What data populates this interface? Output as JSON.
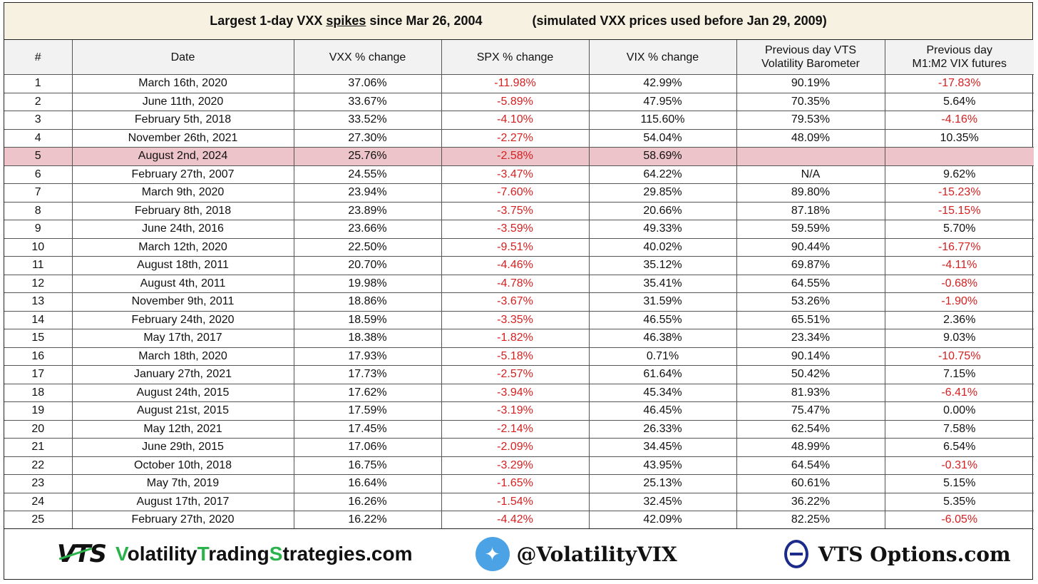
{
  "title": {
    "left_pre": "Largest 1-day VXX ",
    "left_underlined": "spikes",
    "left_post": " since Mar 26, 2004",
    "right": "(simulated VXX prices used before Jan 29, 2009)"
  },
  "headers": {
    "num": "#",
    "date": "Date",
    "vxx": "VXX % change",
    "spx": "SPX % change",
    "vix": "VIX % change",
    "vtsbaro_line1": "Previous day VTS",
    "vtsbaro_line2": "Volatility Barometer",
    "m1m2_line1": "Previous day",
    "m1m2_line2": "M1:M2 VIX futures"
  },
  "rows": [
    {
      "n": "1",
      "date": "March 16th, 2020",
      "vxx": "37.06%",
      "spx": "-11.98%",
      "vix": "42.99%",
      "baro": "90.19%",
      "m1m2": "-17.83%"
    },
    {
      "n": "2",
      "date": "June 11th, 2020",
      "vxx": "33.67%",
      "spx": "-5.89%",
      "vix": "47.95%",
      "baro": "70.35%",
      "m1m2": "5.64%"
    },
    {
      "n": "3",
      "date": "February 5th, 2018",
      "vxx": "33.52%",
      "spx": "-4.10%",
      "vix": "115.60%",
      "baro": "79.53%",
      "m1m2": "-4.16%"
    },
    {
      "n": "4",
      "date": "November 26th, 2021",
      "vxx": "27.30%",
      "spx": "-2.27%",
      "vix": "54.04%",
      "baro": "48.09%",
      "m1m2": "10.35%"
    },
    {
      "n": "5",
      "date": "August 2nd, 2024",
      "vxx": "25.76%",
      "spx": "-2.58%",
      "vix": "58.69%",
      "baro": "",
      "m1m2": ""
    },
    {
      "n": "6",
      "date": "February 27th, 2007",
      "vxx": "24.55%",
      "spx": "-3.47%",
      "vix": "64.22%",
      "baro": "N/A",
      "m1m2": "9.62%"
    },
    {
      "n": "7",
      "date": "March 9th, 2020",
      "vxx": "23.94%",
      "spx": "-7.60%",
      "vix": "29.85%",
      "baro": "89.80%",
      "m1m2": "-15.23%"
    },
    {
      "n": "8",
      "date": "February 8th, 2018",
      "vxx": "23.89%",
      "spx": "-3.75%",
      "vix": "20.66%",
      "baro": "87.18%",
      "m1m2": "-15.15%"
    },
    {
      "n": "9",
      "date": "June 24th, 2016",
      "vxx": "23.66%",
      "spx": "-3.59%",
      "vix": "49.33%",
      "baro": "59.59%",
      "m1m2": "5.70%"
    },
    {
      "n": "10",
      "date": "March 12th, 2020",
      "vxx": "22.50%",
      "spx": "-9.51%",
      "vix": "40.02%",
      "baro": "90.44%",
      "m1m2": "-16.77%"
    },
    {
      "n": "11",
      "date": "August 18th, 2011",
      "vxx": "20.70%",
      "spx": "-4.46%",
      "vix": "35.12%",
      "baro": "69.87%",
      "m1m2": "-4.11%"
    },
    {
      "n": "12",
      "date": "August 4th, 2011",
      "vxx": "19.98%",
      "spx": "-4.78%",
      "vix": "35.41%",
      "baro": "64.55%",
      "m1m2": "-0.68%"
    },
    {
      "n": "13",
      "date": "November 9th, 2011",
      "vxx": "18.86%",
      "spx": "-3.67%",
      "vix": "31.59%",
      "baro": "53.26%",
      "m1m2": "-1.90%"
    },
    {
      "n": "14",
      "date": "February 24th, 2020",
      "vxx": "18.59%",
      "spx": "-3.35%",
      "vix": "46.55%",
      "baro": "65.51%",
      "m1m2": "2.36%"
    },
    {
      "n": "15",
      "date": "May 17th, 2017",
      "vxx": "18.38%",
      "spx": "-1.82%",
      "vix": "46.38%",
      "baro": "23.34%",
      "m1m2": "9.03%"
    },
    {
      "n": "16",
      "date": "March 18th, 2020",
      "vxx": "17.93%",
      "spx": "-5.18%",
      "vix": "0.71%",
      "baro": "90.14%",
      "m1m2": "-10.75%"
    },
    {
      "n": "17",
      "date": "January 27th, 2021",
      "vxx": "17.73%",
      "spx": "-2.57%",
      "vix": "61.64%",
      "baro": "50.42%",
      "m1m2": "7.15%"
    },
    {
      "n": "18",
      "date": "August 24th, 2015",
      "vxx": "17.62%",
      "spx": "-3.94%",
      "vix": "45.34%",
      "baro": "81.93%",
      "m1m2": "-6.41%"
    },
    {
      "n": "19",
      "date": "August 21st, 2015",
      "vxx": "17.59%",
      "spx": "-3.19%",
      "vix": "46.45%",
      "baro": "75.47%",
      "m1m2": "0.00%"
    },
    {
      "n": "20",
      "date": "May 12th, 2021",
      "vxx": "17.45%",
      "spx": "-2.14%",
      "vix": "26.33%",
      "baro": "62.54%",
      "m1m2": "7.58%"
    },
    {
      "n": "21",
      "date": "June 29th, 2015",
      "vxx": "17.06%",
      "spx": "-2.09%",
      "vix": "34.45%",
      "baro": "48.99%",
      "m1m2": "6.54%"
    },
    {
      "n": "22",
      "date": "October 10th, 2018",
      "vxx": "16.75%",
      "spx": "-3.29%",
      "vix": "43.95%",
      "baro": "64.54%",
      "m1m2": "-0.31%"
    },
    {
      "n": "23",
      "date": "May 7th, 2019",
      "vxx": "16.64%",
      "spx": "-1.65%",
      "vix": "25.13%",
      "baro": "60.61%",
      "m1m2": "5.15%"
    },
    {
      "n": "24",
      "date": "August 17th, 2017",
      "vxx": "16.26%",
      "spx": "-1.54%",
      "vix": "32.45%",
      "baro": "36.22%",
      "m1m2": "5.35%"
    },
    {
      "n": "25",
      "date": "February 27th, 2020",
      "vxx": "16.22%",
      "spx": "-4.42%",
      "vix": "42.09%",
      "baro": "82.25%",
      "m1m2": "-6.05%"
    }
  ],
  "highlight_row": "5",
  "colors": {
    "negative": "#d61f1f",
    "highlight": "#ecc4c9",
    "title_bg": "#f7f1e1",
    "brand_green": "#29b34a",
    "twitter_blue": "#4ba3e6",
    "options_navy": "#1c2a8a"
  },
  "footer": {
    "vts_logo": "VTS",
    "site": {
      "p1": "Volatility",
      "p2": "T",
      "p3": "rading",
      "p4": "S",
      "p5": "trategies.com",
      "v": "V"
    },
    "twitter_handle": "@VolatilityVIX",
    "twitter_icon": "twitter-bird-icon",
    "options_text": "VTS Options.com",
    "options_icon": "theta-icon"
  }
}
